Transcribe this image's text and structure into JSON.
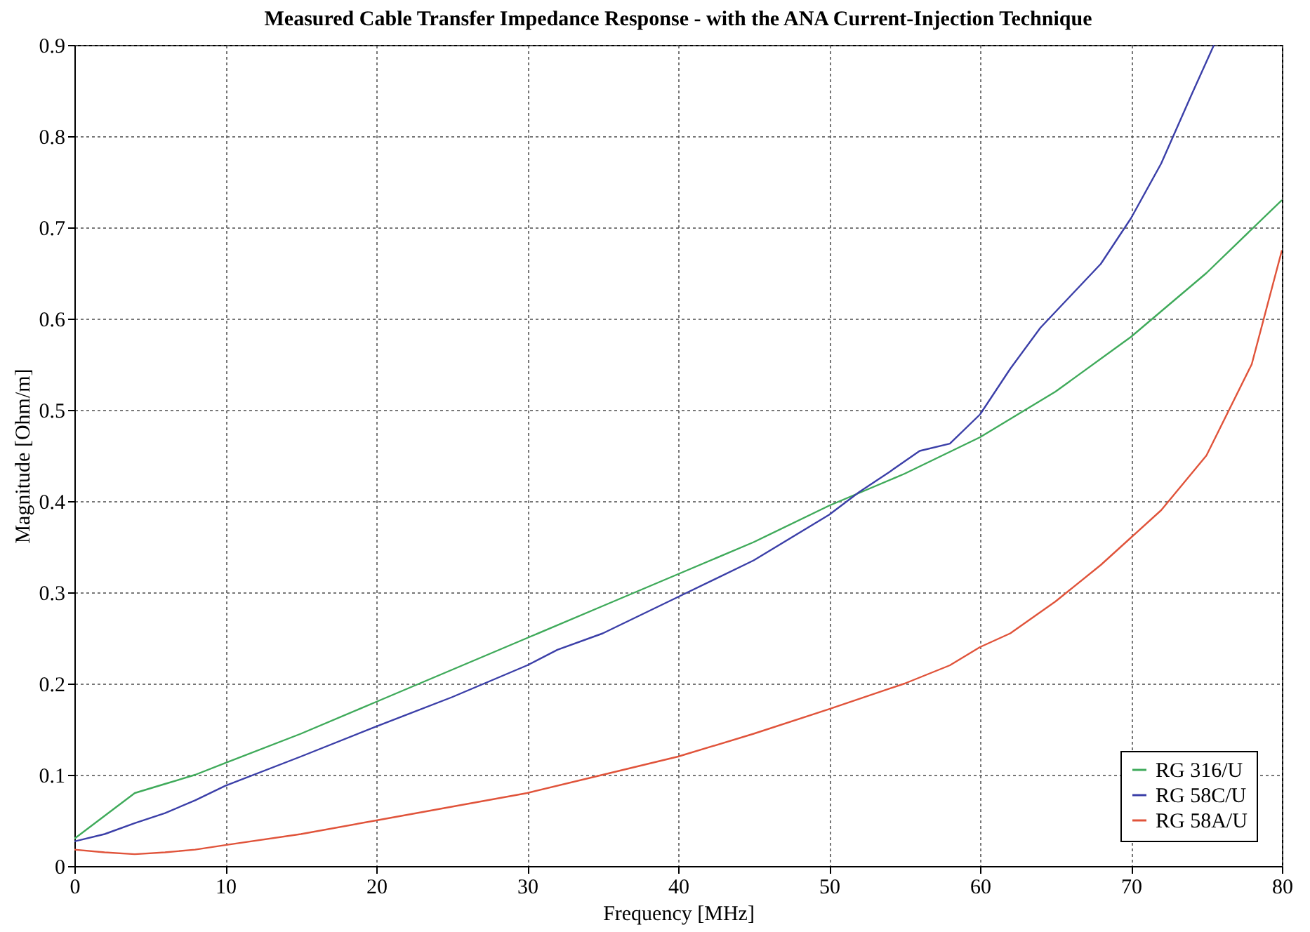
{
  "chart_data": {
    "type": "line",
    "title": "Measured Cable Transfer Impedance Response - with the ANA Current-Injection Technique",
    "xlabel": "Frequency [MHz]",
    "ylabel": "Magnitude [Ohm/m]",
    "xlim": [
      0,
      80
    ],
    "ylim": [
      0,
      0.9
    ],
    "xticks": [
      0,
      10,
      20,
      30,
      40,
      50,
      60,
      70,
      80
    ],
    "yticks": [
      0,
      0.1,
      0.2,
      0.3,
      0.4,
      0.5,
      0.6,
      0.7,
      0.8,
      0.9
    ],
    "grid": true,
    "legend": "bottom right",
    "line_style": "solid",
    "marker": "none",
    "series": [
      {
        "name": "RG 316/U",
        "color": "#3faa5a",
        "x": [
          0,
          2,
          4,
          6,
          8,
          10,
          15,
          20,
          25,
          30,
          35,
          40,
          45,
          50,
          55,
          60,
          65,
          70,
          75,
          80
        ],
        "values": [
          0.03,
          0.055,
          0.08,
          0.09,
          0.1,
          0.113,
          0.145,
          0.18,
          0.215,
          0.25,
          0.285,
          0.32,
          0.355,
          0.395,
          0.43,
          0.47,
          0.52,
          0.58,
          0.65,
          0.73
        ]
      },
      {
        "name": "RG 58C/U",
        "color": "#3b3fa8",
        "x": [
          0,
          2,
          4,
          6,
          8,
          10,
          15,
          20,
          25,
          30,
          32,
          35,
          40,
          45,
          50,
          52,
          54,
          56,
          58,
          60,
          62,
          64,
          66,
          68,
          70,
          72,
          74,
          75.5
        ],
        "values": [
          0.027,
          0.035,
          0.047,
          0.058,
          0.072,
          0.088,
          0.12,
          0.153,
          0.185,
          0.22,
          0.237,
          0.255,
          0.295,
          0.335,
          0.385,
          0.41,
          0.432,
          0.455,
          0.463,
          0.495,
          0.545,
          0.59,
          0.625,
          0.66,
          0.71,
          0.77,
          0.845,
          0.9
        ]
      },
      {
        "name": "RG 58A/U",
        "color": "#e0533a",
        "x": [
          0,
          2,
          4,
          6,
          8,
          10,
          15,
          20,
          25,
          30,
          35,
          40,
          45,
          50,
          55,
          58,
          60,
          62,
          65,
          68,
          70,
          72,
          75,
          78,
          80
        ],
        "values": [
          0.018,
          0.015,
          0.013,
          0.015,
          0.018,
          0.023,
          0.035,
          0.05,
          0.065,
          0.08,
          0.1,
          0.12,
          0.145,
          0.172,
          0.2,
          0.22,
          0.24,
          0.255,
          0.29,
          0.33,
          0.36,
          0.39,
          0.45,
          0.55,
          0.675
        ]
      }
    ]
  }
}
